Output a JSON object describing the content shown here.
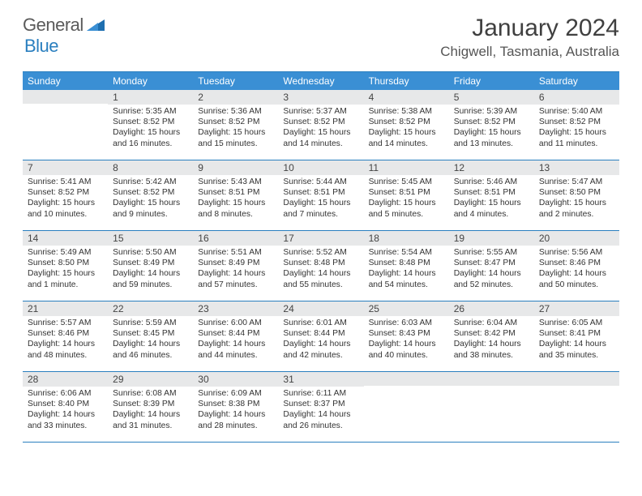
{
  "brand": {
    "part1": "General",
    "part2": "Blue"
  },
  "title": "January 2024",
  "location": "Chigwell, Tasmania, Australia",
  "colors": {
    "accent": "#3a8fd4",
    "rule": "#2a7fbf",
    "daynum_bg": "#e7e8e9",
    "text": "#333333"
  },
  "dow": [
    "Sunday",
    "Monday",
    "Tuesday",
    "Wednesday",
    "Thursday",
    "Friday",
    "Saturday"
  ],
  "weeks": [
    [
      null,
      {
        "n": "1",
        "sr": "5:35 AM",
        "ss": "8:52 PM",
        "dl": "15 hours and 16 minutes."
      },
      {
        "n": "2",
        "sr": "5:36 AM",
        "ss": "8:52 PM",
        "dl": "15 hours and 15 minutes."
      },
      {
        "n": "3",
        "sr": "5:37 AM",
        "ss": "8:52 PM",
        "dl": "15 hours and 14 minutes."
      },
      {
        "n": "4",
        "sr": "5:38 AM",
        "ss": "8:52 PM",
        "dl": "15 hours and 14 minutes."
      },
      {
        "n": "5",
        "sr": "5:39 AM",
        "ss": "8:52 PM",
        "dl": "15 hours and 13 minutes."
      },
      {
        "n": "6",
        "sr": "5:40 AM",
        "ss": "8:52 PM",
        "dl": "15 hours and 11 minutes."
      }
    ],
    [
      {
        "n": "7",
        "sr": "5:41 AM",
        "ss": "8:52 PM",
        "dl": "15 hours and 10 minutes."
      },
      {
        "n": "8",
        "sr": "5:42 AM",
        "ss": "8:52 PM",
        "dl": "15 hours and 9 minutes."
      },
      {
        "n": "9",
        "sr": "5:43 AM",
        "ss": "8:51 PM",
        "dl": "15 hours and 8 minutes."
      },
      {
        "n": "10",
        "sr": "5:44 AM",
        "ss": "8:51 PM",
        "dl": "15 hours and 7 minutes."
      },
      {
        "n": "11",
        "sr": "5:45 AM",
        "ss": "8:51 PM",
        "dl": "15 hours and 5 minutes."
      },
      {
        "n": "12",
        "sr": "5:46 AM",
        "ss": "8:51 PM",
        "dl": "15 hours and 4 minutes."
      },
      {
        "n": "13",
        "sr": "5:47 AM",
        "ss": "8:50 PM",
        "dl": "15 hours and 2 minutes."
      }
    ],
    [
      {
        "n": "14",
        "sr": "5:49 AM",
        "ss": "8:50 PM",
        "dl": "15 hours and 1 minute."
      },
      {
        "n": "15",
        "sr": "5:50 AM",
        "ss": "8:49 PM",
        "dl": "14 hours and 59 minutes."
      },
      {
        "n": "16",
        "sr": "5:51 AM",
        "ss": "8:49 PM",
        "dl": "14 hours and 57 minutes."
      },
      {
        "n": "17",
        "sr": "5:52 AM",
        "ss": "8:48 PM",
        "dl": "14 hours and 55 minutes."
      },
      {
        "n": "18",
        "sr": "5:54 AM",
        "ss": "8:48 PM",
        "dl": "14 hours and 54 minutes."
      },
      {
        "n": "19",
        "sr": "5:55 AM",
        "ss": "8:47 PM",
        "dl": "14 hours and 52 minutes."
      },
      {
        "n": "20",
        "sr": "5:56 AM",
        "ss": "8:46 PM",
        "dl": "14 hours and 50 minutes."
      }
    ],
    [
      {
        "n": "21",
        "sr": "5:57 AM",
        "ss": "8:46 PM",
        "dl": "14 hours and 48 minutes."
      },
      {
        "n": "22",
        "sr": "5:59 AM",
        "ss": "8:45 PM",
        "dl": "14 hours and 46 minutes."
      },
      {
        "n": "23",
        "sr": "6:00 AM",
        "ss": "8:44 PM",
        "dl": "14 hours and 44 minutes."
      },
      {
        "n": "24",
        "sr": "6:01 AM",
        "ss": "8:44 PM",
        "dl": "14 hours and 42 minutes."
      },
      {
        "n": "25",
        "sr": "6:03 AM",
        "ss": "8:43 PM",
        "dl": "14 hours and 40 minutes."
      },
      {
        "n": "26",
        "sr": "6:04 AM",
        "ss": "8:42 PM",
        "dl": "14 hours and 38 minutes."
      },
      {
        "n": "27",
        "sr": "6:05 AM",
        "ss": "8:41 PM",
        "dl": "14 hours and 35 minutes."
      }
    ],
    [
      {
        "n": "28",
        "sr": "6:06 AM",
        "ss": "8:40 PM",
        "dl": "14 hours and 33 minutes."
      },
      {
        "n": "29",
        "sr": "6:08 AM",
        "ss": "8:39 PM",
        "dl": "14 hours and 31 minutes."
      },
      {
        "n": "30",
        "sr": "6:09 AM",
        "ss": "8:38 PM",
        "dl": "14 hours and 28 minutes."
      },
      {
        "n": "31",
        "sr": "6:11 AM",
        "ss": "8:37 PM",
        "dl": "14 hours and 26 minutes."
      },
      null,
      null,
      null
    ]
  ],
  "labels": {
    "sunrise": "Sunrise:",
    "sunset": "Sunset:",
    "daylight": "Daylight:"
  }
}
